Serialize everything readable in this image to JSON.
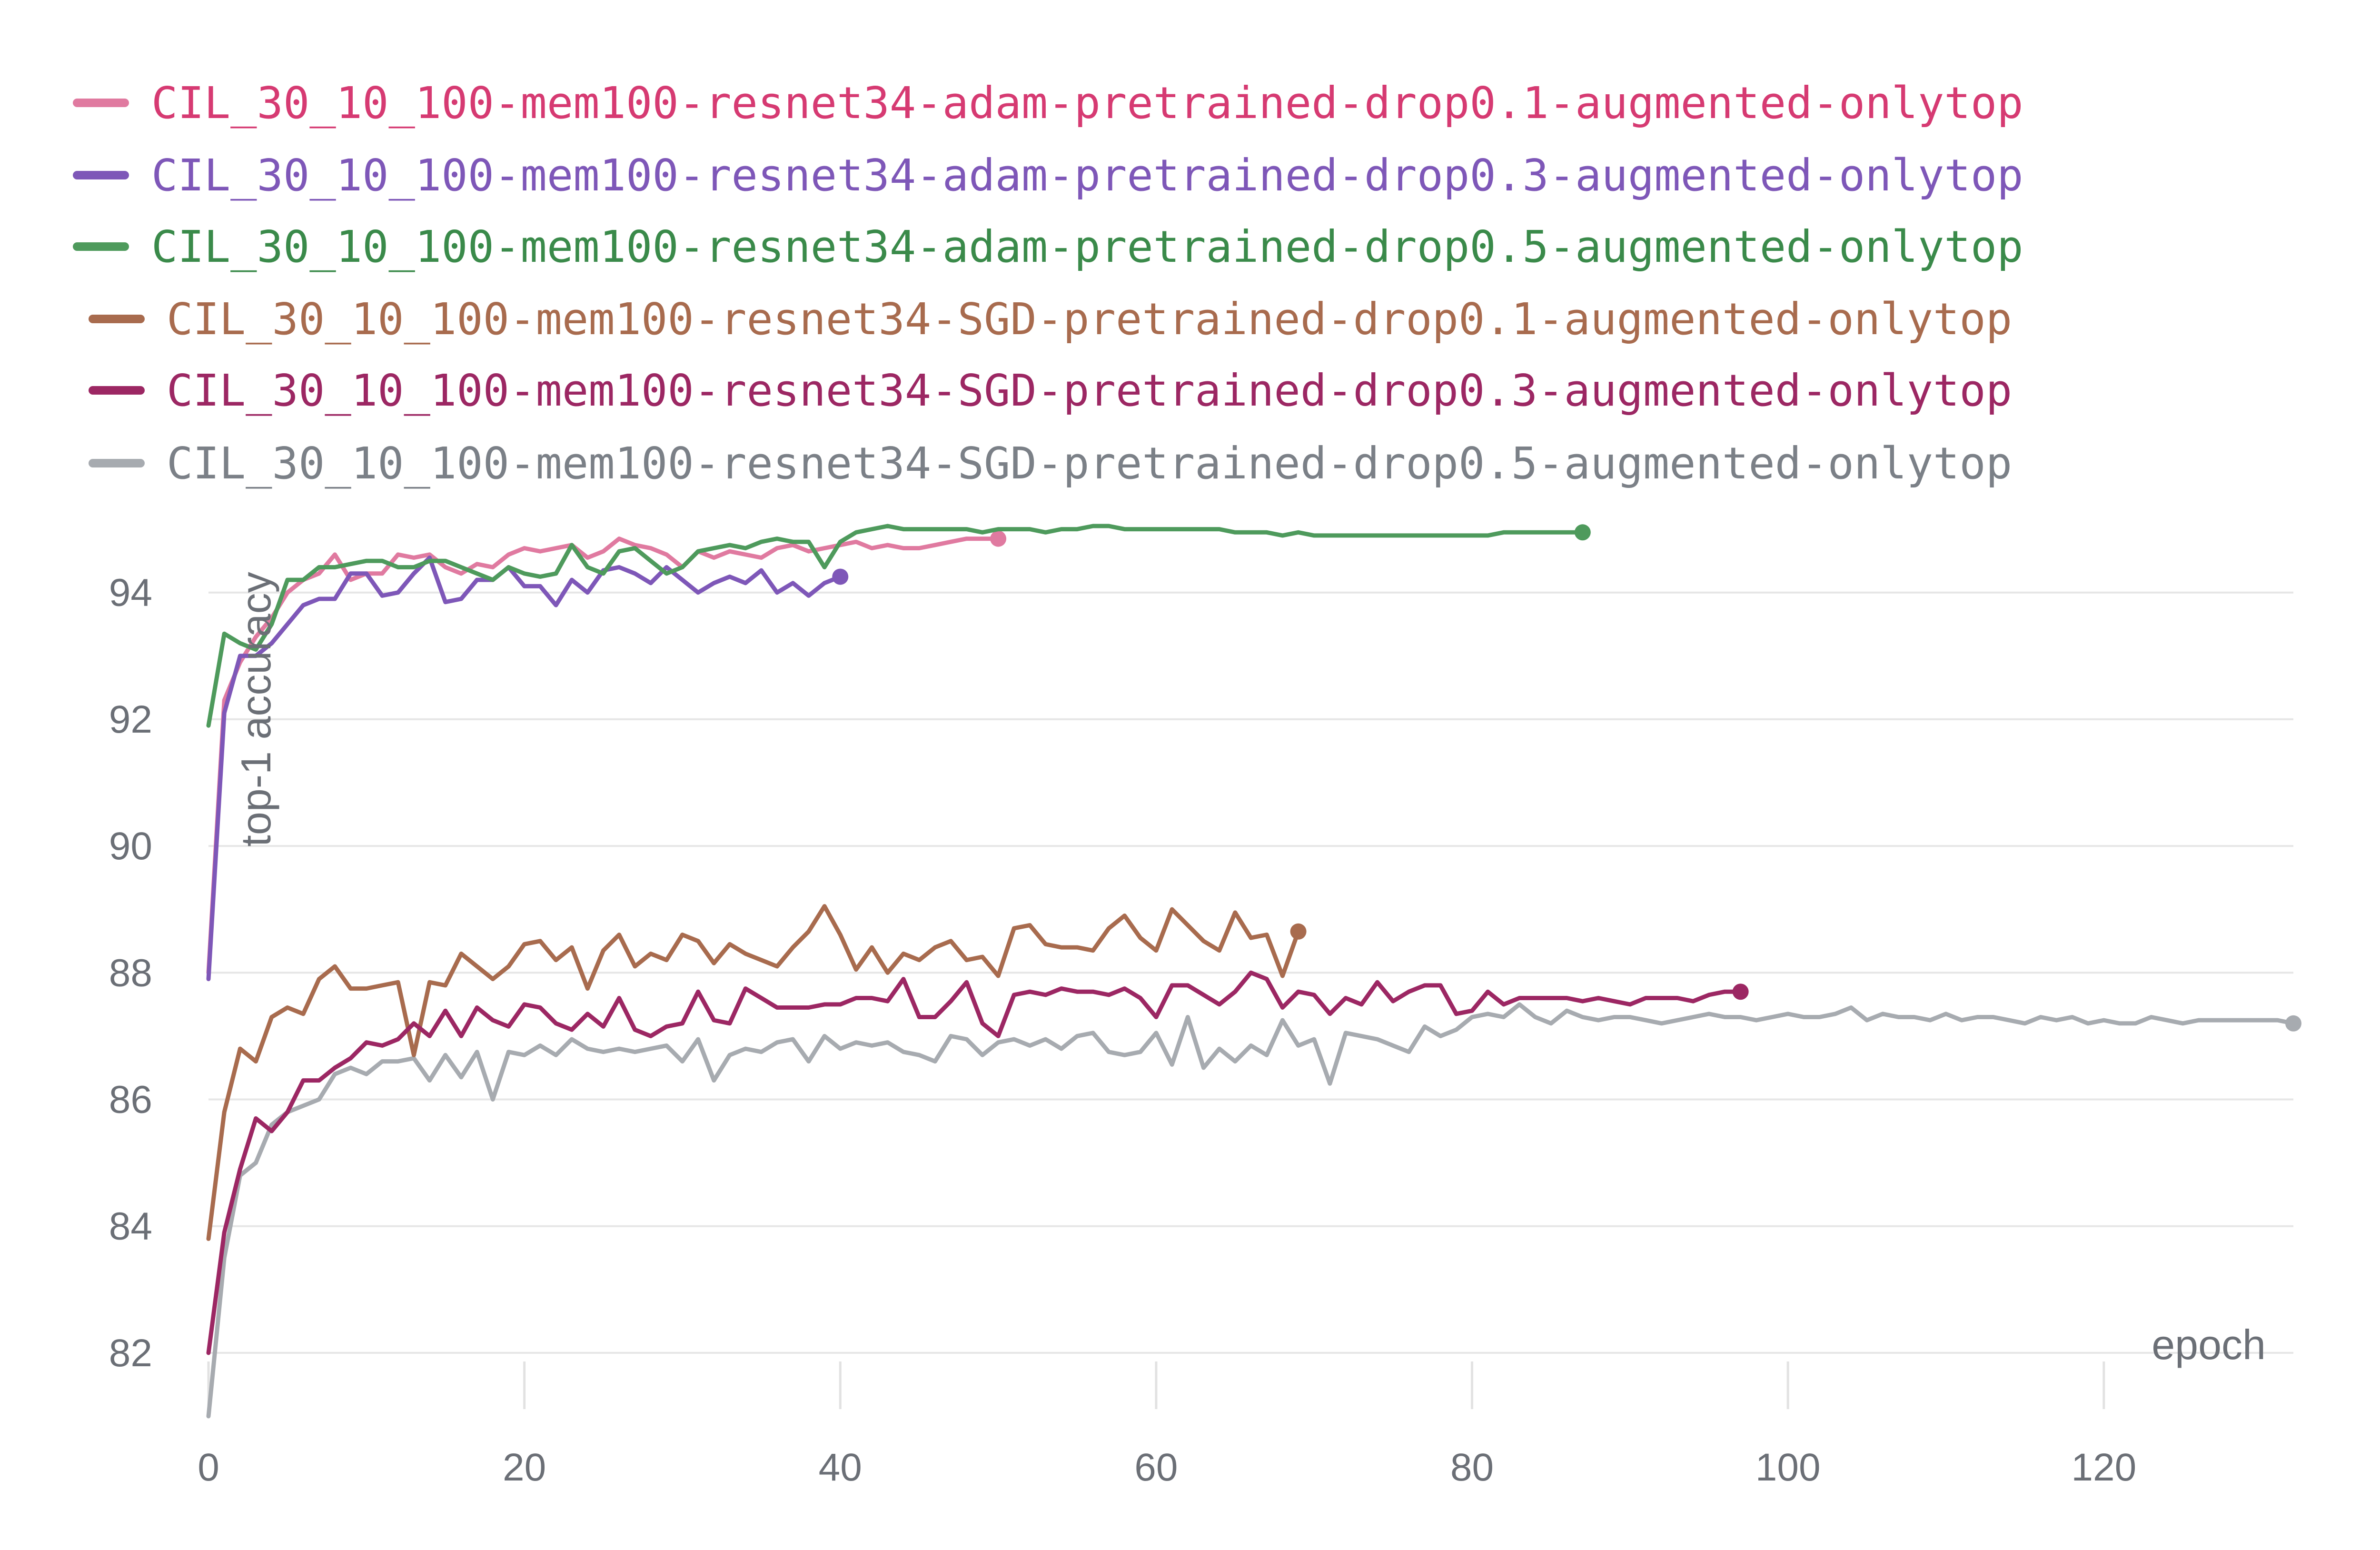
{
  "chart_data": {
    "type": "line",
    "title": "",
    "xlabel": "epoch",
    "ylabel": "top-1 accuracy",
    "xlim": [
      0,
      132
    ],
    "ylim": [
      81,
      95.2
    ],
    "x_ticks": [
      "0",
      "20",
      "40",
      "60",
      "80",
      "100",
      "120"
    ],
    "x_tick_values": [
      0,
      20,
      40,
      60,
      80,
      100,
      120
    ],
    "y_ticks": [
      "82",
      "84",
      "86",
      "88",
      "90",
      "92",
      "94"
    ],
    "y_tick_values": [
      82,
      84,
      86,
      88,
      90,
      92,
      94
    ],
    "grid": true,
    "legend_position": "top-left",
    "series": [
      {
        "name": "CIL_30_10_100-mem100-resnet34-adam-pretrained-drop0.1-augmented-onlytop",
        "color": "#e07aa0",
        "text_color": "#d63a72",
        "x": [
          0,
          1,
          2,
          3,
          4,
          5,
          6,
          7,
          8,
          9,
          10,
          11,
          12,
          13,
          14,
          15,
          16,
          17,
          18,
          19,
          20,
          21,
          22,
          23,
          24,
          25,
          26,
          27,
          28,
          29,
          30,
          31,
          32,
          33,
          34,
          35,
          36,
          37,
          38,
          39,
          40,
          41,
          42,
          43,
          44,
          45,
          46,
          47,
          48,
          49,
          50
        ],
        "y": [
          88.0,
          92.3,
          92.9,
          93.3,
          93.6,
          94.0,
          94.2,
          94.3,
          94.6,
          94.2,
          94.3,
          94.3,
          94.6,
          94.55,
          94.6,
          94.4,
          94.3,
          94.45,
          94.4,
          94.6,
          94.7,
          94.65,
          94.7,
          94.75,
          94.55,
          94.65,
          94.85,
          94.75,
          94.7,
          94.6,
          94.4,
          94.65,
          94.55,
          94.65,
          94.6,
          94.55,
          94.7,
          94.75,
          94.65,
          94.7,
          94.75,
          94.8,
          94.7,
          94.75,
          94.7,
          94.7,
          94.75,
          94.8,
          94.85,
          94.85,
          94.85
        ]
      },
      {
        "name": "CIL_30_10_100-mem100-resnet34-adam-pretrained-drop0.3-augmented-onlytop",
        "color": "#7e57b8",
        "text_color": "#7e57b8",
        "x": [
          0,
          1,
          2,
          3,
          4,
          5,
          6,
          7,
          8,
          9,
          10,
          11,
          12,
          13,
          14,
          15,
          16,
          17,
          18,
          19,
          20,
          21,
          22,
          23,
          24,
          25,
          26,
          27,
          28,
          29,
          30,
          31,
          32,
          33,
          34,
          35,
          36,
          37,
          38,
          39,
          40
        ],
        "y": [
          87.9,
          92.1,
          93.0,
          93.0,
          93.2,
          93.5,
          93.8,
          93.9,
          93.9,
          94.3,
          94.3,
          93.95,
          94.0,
          94.3,
          94.55,
          93.85,
          93.9,
          94.2,
          94.2,
          94.4,
          94.1,
          94.1,
          93.8,
          94.2,
          94.0,
          94.35,
          94.4,
          94.3,
          94.15,
          94.4,
          94.2,
          94.0,
          94.15,
          94.25,
          94.15,
          94.35,
          94.0,
          94.15,
          93.95,
          94.15,
          94.25
        ]
      },
      {
        "name": "CIL_30_10_100-mem100-resnet34-adam-pretrained-drop0.5-augmented-onlytop",
        "color": "#4e9a5c",
        "text_color": "#3a8a4a",
        "x": [
          0,
          1,
          2,
          3,
          4,
          5,
          6,
          7,
          8,
          9,
          10,
          11,
          12,
          13,
          14,
          15,
          16,
          17,
          18,
          19,
          20,
          21,
          22,
          23,
          24,
          25,
          26,
          27,
          28,
          29,
          30,
          31,
          32,
          33,
          34,
          35,
          36,
          37,
          38,
          39,
          40,
          41,
          42,
          43,
          44,
          45,
          46,
          47,
          48,
          49,
          50,
          51,
          52,
          53,
          54,
          55,
          56,
          57,
          58,
          59,
          60,
          61,
          62,
          63,
          64,
          65,
          66,
          67,
          68,
          69,
          70,
          71,
          72,
          73,
          74,
          75,
          76,
          77,
          78,
          79,
          80,
          81,
          82,
          83,
          84,
          85,
          86,
          87
        ],
        "y": [
          91.9,
          93.35,
          93.2,
          93.1,
          93.5,
          94.2,
          94.2,
          94.4,
          94.4,
          94.45,
          94.5,
          94.5,
          94.4,
          94.4,
          94.5,
          94.5,
          94.4,
          94.3,
          94.2,
          94.4,
          94.3,
          94.25,
          94.3,
          94.75,
          94.4,
          94.3,
          94.65,
          94.7,
          94.5,
          94.3,
          94.4,
          94.65,
          94.7,
          94.75,
          94.7,
          94.8,
          94.85,
          94.8,
          94.8,
          94.4,
          94.8,
          94.95,
          95.0,
          95.05,
          95.0,
          95.0,
          95.0,
          95.0,
          95.0,
          94.95,
          95.0,
          95.0,
          95.0,
          94.95,
          95.0,
          95.0,
          95.05,
          95.05,
          95.0,
          95.0,
          95.0,
          95.0,
          95.0,
          95.0,
          95.0,
          94.95,
          94.95,
          94.95,
          94.9,
          94.95,
          94.9,
          94.9,
          94.9,
          94.9,
          94.9,
          94.9,
          94.9,
          94.9,
          94.9,
          94.9,
          94.9,
          94.9,
          94.95,
          94.95,
          94.95,
          94.95,
          94.95,
          94.95
        ]
      },
      {
        "name": "CIL_30_10_100-mem100-resnet34-SGD-pretrained-drop0.1-augmented-onlytop",
        "color": "#a86b4e",
        "text_color": "#a86b4e",
        "x": [
          0,
          1,
          2,
          3,
          4,
          5,
          6,
          7,
          8,
          9,
          10,
          11,
          12,
          13,
          14,
          15,
          16,
          17,
          18,
          19,
          20,
          21,
          22,
          23,
          24,
          25,
          26,
          27,
          28,
          29,
          30,
          31,
          32,
          33,
          34,
          35,
          36,
          37,
          38,
          39,
          40,
          41,
          42,
          43,
          44,
          45,
          46,
          47,
          48,
          49,
          50,
          51,
          52,
          53,
          54,
          55,
          56,
          57,
          58,
          59,
          60,
          61,
          62,
          63,
          64,
          65,
          66,
          67,
          68,
          69
        ],
        "y": [
          83.8,
          85.8,
          86.8,
          86.6,
          87.3,
          87.45,
          87.35,
          87.9,
          88.1,
          87.75,
          87.75,
          87.8,
          87.85,
          86.7,
          87.85,
          87.8,
          88.3,
          88.1,
          87.9,
          88.1,
          88.45,
          88.5,
          88.2,
          88.4,
          87.75,
          88.35,
          88.6,
          88.1,
          88.3,
          88.2,
          88.6,
          88.5,
          88.15,
          88.45,
          88.3,
          88.2,
          88.1,
          88.4,
          88.65,
          89.05,
          88.6,
          88.05,
          88.4,
          88.0,
          88.3,
          88.2,
          88.4,
          88.5,
          88.2,
          88.25,
          87.95,
          88.7,
          88.75,
          88.45,
          88.4,
          88.4,
          88.35,
          88.7,
          88.9,
          88.55,
          88.35,
          89.0,
          88.75,
          88.5,
          88.35,
          88.95,
          88.55,
          88.6,
          87.95,
          88.65
        ]
      },
      {
        "name": "CIL_30_10_100-mem100-resnet34-SGD-pretrained-drop0.3-augmented-onlytop",
        "color": "#9c2763",
        "text_color": "#9c2763",
        "x": [
          0,
          1,
          2,
          3,
          4,
          5,
          6,
          7,
          8,
          9,
          10,
          11,
          12,
          13,
          14,
          15,
          16,
          17,
          18,
          19,
          20,
          21,
          22,
          23,
          24,
          25,
          26,
          27,
          28,
          29,
          30,
          31,
          32,
          33,
          34,
          35,
          36,
          37,
          38,
          39,
          40,
          41,
          42,
          43,
          44,
          45,
          46,
          47,
          48,
          49,
          50,
          51,
          52,
          53,
          54,
          55,
          56,
          57,
          58,
          59,
          60,
          61,
          62,
          63,
          64,
          65,
          66,
          67,
          68,
          69,
          70,
          71,
          72,
          73,
          74,
          75,
          76,
          77,
          78,
          79,
          80,
          81,
          82,
          83,
          84,
          85,
          86,
          87,
          88,
          89,
          90,
          91,
          92,
          93,
          94,
          95,
          96,
          97
        ],
        "y": [
          82.0,
          83.9,
          84.9,
          85.7,
          85.5,
          85.8,
          86.3,
          86.3,
          86.5,
          86.65,
          86.9,
          86.85,
          86.95,
          87.2,
          87.0,
          87.4,
          87.0,
          87.45,
          87.25,
          87.15,
          87.5,
          87.45,
          87.2,
          87.1,
          87.35,
          87.15,
          87.6,
          87.1,
          87.0,
          87.15,
          87.2,
          87.7,
          87.25,
          87.2,
          87.75,
          87.6,
          87.45,
          87.45,
          87.45,
          87.5,
          87.5,
          87.6,
          87.6,
          87.55,
          87.9,
          87.3,
          87.3,
          87.55,
          87.85,
          87.2,
          87.0,
          87.65,
          87.7,
          87.65,
          87.75,
          87.7,
          87.7,
          87.65,
          87.75,
          87.6,
          87.3,
          87.8,
          87.8,
          87.65,
          87.5,
          87.7,
          88.0,
          87.9,
          87.45,
          87.7,
          87.65,
          87.35,
          87.6,
          87.5,
          87.85,
          87.55,
          87.7,
          87.8,
          87.8,
          87.35,
          87.4,
          87.7,
          87.5,
          87.6,
          87.6,
          87.6,
          87.6,
          87.55,
          87.6,
          87.55,
          87.5,
          87.6,
          87.6,
          87.6,
          87.55,
          87.65,
          87.7,
          87.7
        ]
      },
      {
        "name": "CIL_30_10_100-mem100-resnet34-SGD-pretrained-drop0.5-augmented-onlytop",
        "color": "#a7abb0",
        "text_color": "#7b8087",
        "x": [
          0,
          1,
          2,
          3,
          4,
          5,
          6,
          7,
          8,
          9,
          10,
          11,
          12,
          13,
          14,
          15,
          16,
          17,
          18,
          19,
          20,
          21,
          22,
          23,
          24,
          25,
          26,
          27,
          28,
          29,
          30,
          31,
          32,
          33,
          34,
          35,
          36,
          37,
          38,
          39,
          40,
          41,
          42,
          43,
          44,
          45,
          46,
          47,
          48,
          49,
          50,
          51,
          52,
          53,
          54,
          55,
          56,
          57,
          58,
          59,
          60,
          61,
          62,
          63,
          64,
          65,
          66,
          67,
          68,
          69,
          70,
          71,
          72,
          73,
          74,
          75,
          76,
          77,
          78,
          79,
          80,
          81,
          82,
          83,
          84,
          85,
          86,
          87,
          88,
          89,
          90,
          91,
          92,
          93,
          94,
          95,
          96,
          97,
          98,
          99,
          100,
          101,
          102,
          103,
          104,
          105,
          106,
          107,
          108,
          109,
          110,
          111,
          112,
          113,
          114,
          115,
          116,
          117,
          118,
          119,
          120,
          121,
          122,
          123,
          124,
          125,
          126,
          127,
          128,
          129,
          130,
          131,
          132
        ],
        "y": [
          81.0,
          83.5,
          84.8,
          85.0,
          85.6,
          85.8,
          85.9,
          86.0,
          86.4,
          86.5,
          86.4,
          86.6,
          86.6,
          86.65,
          86.3,
          86.7,
          86.35,
          86.75,
          86.0,
          86.75,
          86.7,
          86.85,
          86.7,
          86.95,
          86.8,
          86.75,
          86.8,
          86.75,
          86.8,
          86.85,
          86.6,
          86.95,
          86.3,
          86.7,
          86.8,
          86.75,
          86.9,
          86.95,
          86.6,
          87.0,
          86.8,
          86.9,
          86.85,
          86.9,
          86.75,
          86.7,
          86.6,
          87.0,
          86.95,
          86.7,
          86.9,
          86.95,
          86.85,
          86.95,
          86.8,
          87.0,
          87.05,
          86.75,
          86.7,
          86.75,
          87.05,
          86.55,
          87.3,
          86.5,
          86.8,
          86.6,
          86.85,
          86.7,
          87.25,
          86.85,
          86.95,
          86.25,
          87.05,
          87.0,
          86.95,
          86.85,
          86.75,
          87.15,
          87.0,
          87.1,
          87.3,
          87.35,
          87.3,
          87.5,
          87.3,
          87.2,
          87.4,
          87.3,
          87.25,
          87.3,
          87.3,
          87.25,
          87.2,
          87.25,
          87.3,
          87.35,
          87.3,
          87.3,
          87.25,
          87.3,
          87.35,
          87.3,
          87.3,
          87.35,
          87.45,
          87.25,
          87.35,
          87.3,
          87.3,
          87.25,
          87.35,
          87.25,
          87.3,
          87.3,
          87.25,
          87.2,
          87.3,
          87.25,
          87.3,
          87.2,
          87.25,
          87.2,
          87.2,
          87.3,
          87.25,
          87.2,
          87.25,
          87.25,
          87.25,
          87.25,
          87.25,
          87.25,
          87.2
        ]
      }
    ]
  }
}
